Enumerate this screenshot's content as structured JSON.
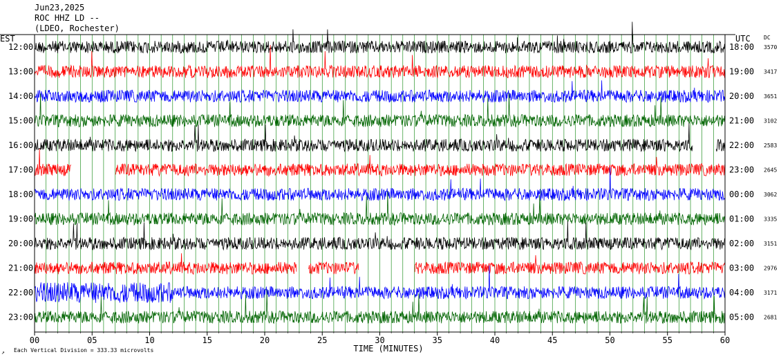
{
  "header": {
    "date": "Jun23,2025",
    "station": "ROC HHZ LD --",
    "network": "(LDEO, Rochester)"
  },
  "left_tz": "EST",
  "right_tz": "UTC",
  "dc_header": "DC",
  "footer_note": "Each Vertical Division =  333.33 microvolts",
  "corner_mark": "↗",
  "colors": {
    "black": "#000000",
    "red": "#ff0000",
    "blue": "#0000ff",
    "green": "#006400"
  },
  "chart_data": {
    "type": "line",
    "xlabel": "TIME (MINUTES)",
    "xlim": [
      0,
      60
    ],
    "x_ticks": [
      "00",
      "05",
      "10",
      "15",
      "20",
      "25",
      "30",
      "35",
      "40",
      "45",
      "50",
      "55",
      "60"
    ],
    "rows": [
      {
        "est": "12:00",
        "utc": "18:00",
        "dc": "3570",
        "color": "#000000"
      },
      {
        "est": "13:00",
        "utc": "19:00",
        "dc": "3417",
        "color": "#ff0000"
      },
      {
        "est": "14:00",
        "utc": "20:00",
        "dc": "3651",
        "color": "#0000ff"
      },
      {
        "est": "15:00",
        "utc": "21:00",
        "dc": "3102",
        "color": "#006400"
      },
      {
        "est": "16:00",
        "utc": "22:00",
        "dc": "2583",
        "color": "#000000"
      },
      {
        "est": "17:00",
        "utc": "23:00",
        "dc": "2645",
        "color": "#ff0000"
      },
      {
        "est": "18:00",
        "utc": "00:00",
        "dc": "3062",
        "color": "#0000ff"
      },
      {
        "est": "19:00",
        "utc": "01:00",
        "dc": "3335",
        "color": "#006400"
      },
      {
        "est": "20:00",
        "utc": "02:00",
        "dc": "3151",
        "color": "#000000"
      },
      {
        "est": "21:00",
        "utc": "03:00",
        "dc": "2976",
        "color": "#ff0000"
      },
      {
        "est": "22:00",
        "utc": "04:00",
        "dc": "3171",
        "color": "#0000ff"
      },
      {
        "est": "23:00",
        "utc": "05:00",
        "dc": "2681",
        "color": "#006400"
      }
    ],
    "data_gaps_minutes": [
      {
        "row": "16:00",
        "from": 57.2,
        "to": 59.2
      },
      {
        "row": "17:00",
        "from": 3.2,
        "to": 7.0
      },
      {
        "row": "21:00",
        "from": 22.8,
        "to": 23.8
      },
      {
        "row": "21:00",
        "from": 28.2,
        "to": 33.0
      }
    ]
  }
}
